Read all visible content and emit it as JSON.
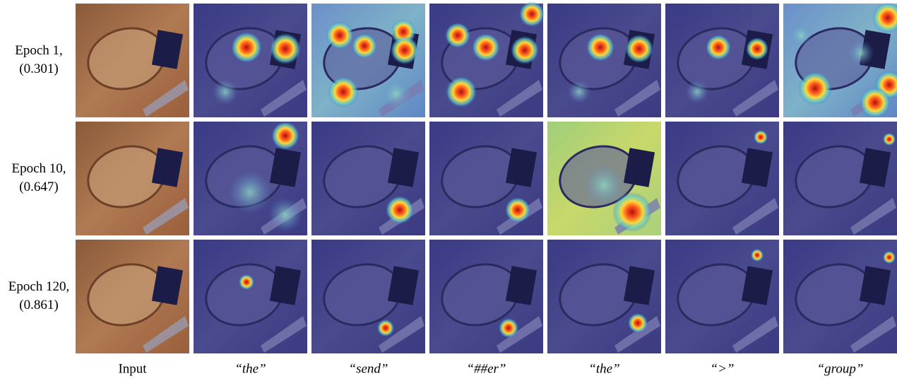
{
  "rows": [
    {
      "label": "Epoch 1,",
      "score": "(0.301)"
    },
    {
      "label": "Epoch 10,",
      "score": "(0.647)"
    },
    {
      "label": "Epoch 120,",
      "score": "(0.861)"
    }
  ],
  "columns": [
    "Input",
    "“the”",
    "“send”",
    "“##er”",
    "“the”",
    "“>”",
    "“group”"
  ]
}
